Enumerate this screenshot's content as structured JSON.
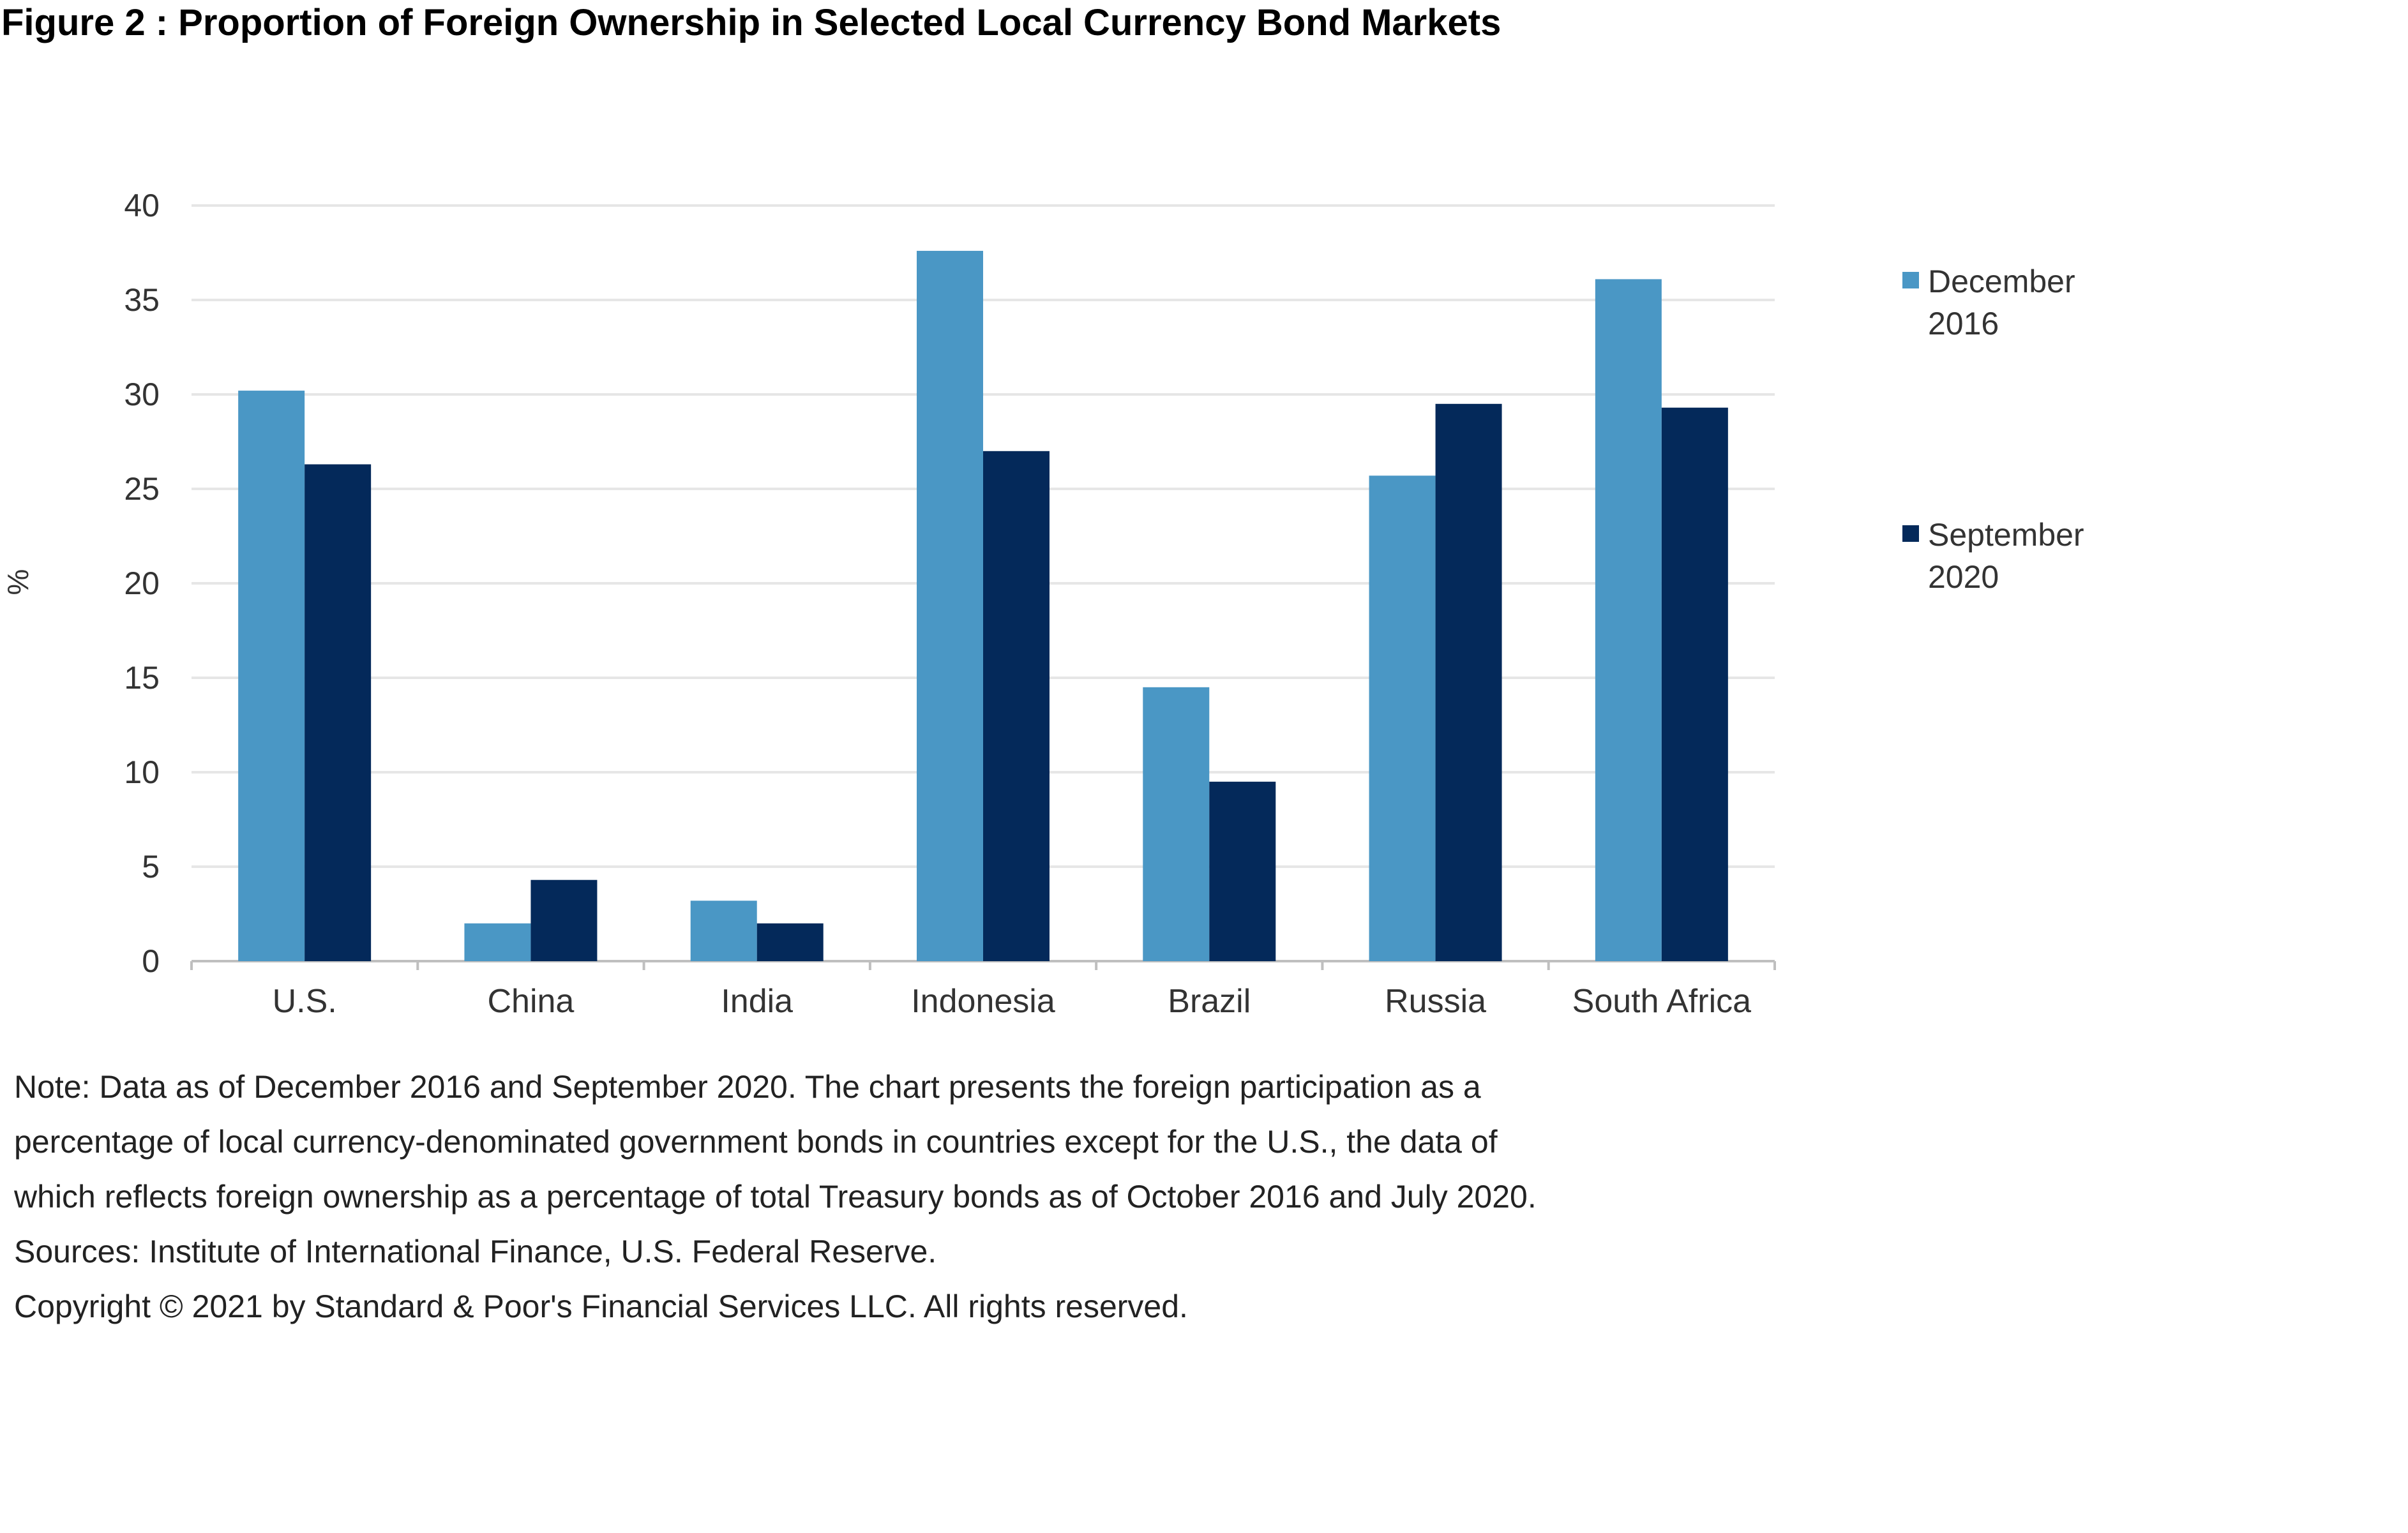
{
  "figure_title": "Figure 2 : Proportion of Foreign Ownership in Selected Local Currency Bond Markets",
  "chart_data": {
    "type": "bar",
    "title": "Figure 2 : Proportion of Foreign Ownership in Selected Local Currency Bond Markets",
    "xlabel": "",
    "ylabel": "%",
    "ylim": [
      0,
      40
    ],
    "yticks": [
      0,
      5,
      10,
      15,
      20,
      25,
      30,
      35,
      40
    ],
    "grid": true,
    "legend_position": "right",
    "categories": [
      "U.S.",
      "China",
      "India",
      "Indonesia",
      "Brazil",
      "Russia",
      "South Africa"
    ],
    "series": [
      {
        "name": "December 2016",
        "legend_lines": [
          "December",
          "2016"
        ],
        "color": "#4a97c5",
        "values": [
          30.2,
          2.0,
          3.2,
          37.6,
          14.5,
          25.7,
          36.1
        ]
      },
      {
        "name": "September 2020",
        "legend_lines": [
          "September",
          "2020"
        ],
        "color": "#04295a",
        "values": [
          26.3,
          4.3,
          2.0,
          27.0,
          9.5,
          29.5,
          29.3
        ]
      }
    ]
  },
  "notes": [
    "Note: Data as of December 2016 and September 2020. The chart presents the foreign participation as a",
    "percentage of local currency-denominated government bonds in countries except for the U.S., the data of",
    "which reflects foreign ownership as a percentage of total Treasury bonds as of October 2016 and July 2020.",
    "Sources: Institute of International Finance, U.S. Federal Reserve.",
    "Copyright © 2021 by Standard & Poor's Financial Services LLC. All rights reserved."
  ]
}
